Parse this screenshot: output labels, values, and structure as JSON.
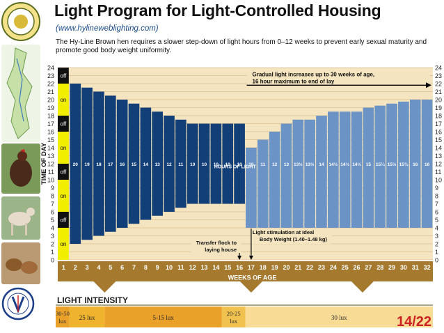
{
  "header": {
    "title": "Light Program for Light-Controlled Housing",
    "url": "(www.hylineweblighting.com)",
    "description": "The Hy-Line Brown hen requires a slower step-down of light hours from 0–12 weeks to prevent early sexual maturity and promote good body weight uniformity."
  },
  "chart_data": {
    "type": "bar",
    "xlabel": "WEEKS OF AGE",
    "ylabel": "TIME OF DAY",
    "ylim": [
      0,
      24
    ],
    "y_ticks": [
      "0",
      "1",
      "2",
      "3",
      "4",
      "5",
      "6",
      "7",
      "8",
      "9",
      "10",
      "11",
      "12",
      "13",
      "14",
      "15",
      "16",
      "17",
      "18",
      "19",
      "20",
      "21",
      "22",
      "23",
      "24"
    ],
    "categories": [
      "1",
      "2",
      "3",
      "4",
      "5",
      "6",
      "7",
      "8",
      "9",
      "10",
      "11",
      "12",
      "13",
      "14",
      "15",
      "16",
      "17",
      "18",
      "19",
      "20",
      "21",
      "22",
      "23",
      "24",
      "25",
      "26",
      "27",
      "28",
      "29",
      "30",
      "31",
      "32"
    ],
    "hours_labels": [
      "",
      "20",
      "19",
      "18",
      "17",
      "16",
      "15",
      "14",
      "13",
      "12",
      "11",
      "10",
      "10",
      "10",
      "10",
      "10",
      "10",
      "11",
      "12",
      "13",
      "13½",
      "13½",
      "14",
      "14½",
      "14½",
      "14½",
      "15",
      "15¼",
      "15½",
      "15¾",
      "16",
      "16"
    ],
    "values": [
      24,
      20,
      19,
      18,
      17,
      16,
      15,
      14,
      13,
      12,
      11,
      10,
      10,
      10,
      10,
      10,
      10,
      11,
      12,
      13,
      13.5,
      13.5,
      14,
      14.5,
      14.5,
      14.5,
      15,
      15.25,
      15.5,
      15.75,
      16,
      16
    ],
    "light_start": [
      0,
      2,
      2.5,
      3,
      3.5,
      4,
      4.5,
      5,
      5.5,
      6,
      6.5,
      7,
      7,
      7,
      7,
      7,
      4,
      4,
      4,
      4,
      4,
      4,
      4,
      4,
      4,
      4,
      4,
      4,
      4,
      4,
      4,
      4
    ],
    "first_week_schedule": [
      {
        "label": "on",
        "from": 0,
        "to": 4
      },
      {
        "label": "off",
        "from": 4,
        "to": 6
      },
      {
        "label": "on",
        "from": 6,
        "to": 10
      },
      {
        "label": "off",
        "from": 10,
        "to": 12
      },
      {
        "label": "on",
        "from": 12,
        "to": 16
      },
      {
        "label": "off",
        "from": 16,
        "to": 18
      },
      {
        "label": "on",
        "from": 18,
        "to": 22
      },
      {
        "label": "off",
        "from": 22,
        "to": 24
      }
    ],
    "center_label": "HOURS OF LIGHT",
    "annotations": {
      "gradual_line1": "Gradual light increases up to 30 weeks of age,",
      "gradual_line2": "16 hour maximum to end of lay",
      "transfer_line1": "Transfer flock to",
      "transfer_line2": "laying house",
      "stim_line1": "Light stimulation at Ideal",
      "stim_line2": "Body Weight (1.40–1.48 kg)"
    },
    "colors": {
      "dark_bar": "#123f78",
      "light_bar": "#6b93c6",
      "on": "#f2ee00",
      "off": "#111111",
      "axis_band": "#a57a2f",
      "grid_bg": "#f4e4bf"
    }
  },
  "intensity": {
    "title": "LIGHT INTENSITY",
    "segments": [
      {
        "label_line1": "30-50",
        "label_line2": "lux",
        "color": "#eaa12a"
      },
      {
        "label_line1": "25 lux",
        "label_line2": "",
        "color": "#f0b32e"
      },
      {
        "label_line1": "5-15 lux",
        "label_line2": "",
        "color": "#eaa12a"
      },
      {
        "label_line1": "20-25",
        "label_line2": "lux",
        "color": "#f2c250"
      },
      {
        "label_line1": "30 lux",
        "label_line2": "",
        "color": "#f8dc95"
      }
    ]
  },
  "footer": {
    "page_number": "14/22"
  }
}
